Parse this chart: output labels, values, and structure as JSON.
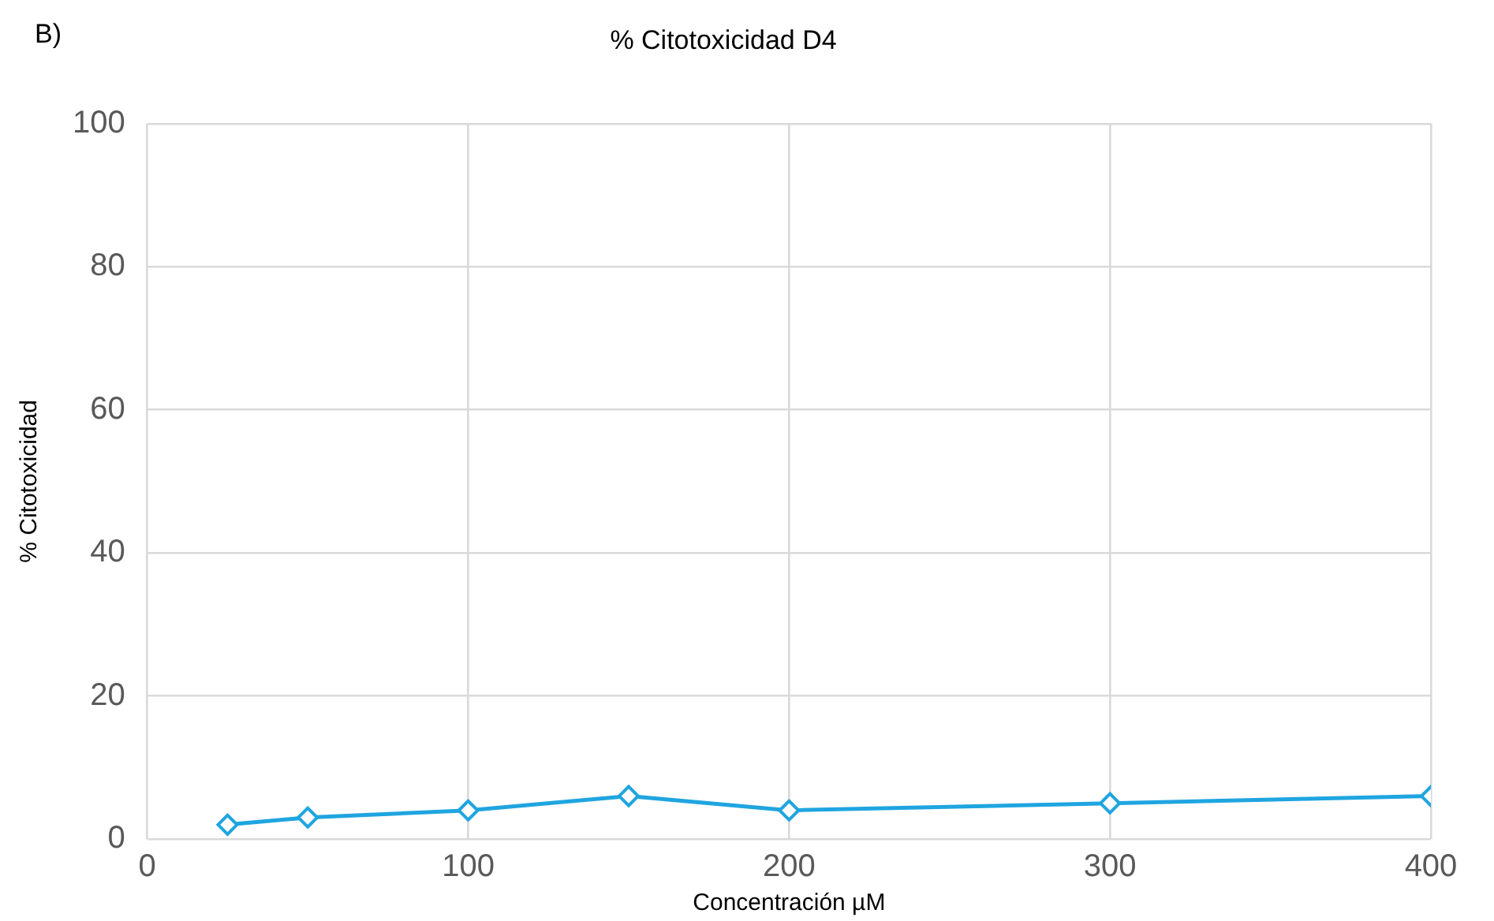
{
  "chart_data": {
    "type": "line",
    "title": "% Citotoxicidad D4",
    "xlabel": "Concentración µM",
    "ylabel": "% Citotoxicidad",
    "annotations": [
      "B)"
    ],
    "x": [
      25,
      50,
      100,
      150,
      200,
      300,
      400
    ],
    "series": [
      {
        "color": "#1fa5e0",
        "values": [
          2,
          3,
          4,
          6,
          4,
          5,
          6
        ]
      }
    ],
    "xlim": [
      0,
      400
    ],
    "xticks": [
      0,
      100,
      200,
      300,
      400
    ],
    "ylim": [
      0,
      100
    ],
    "yticks": [
      0,
      20,
      40,
      60,
      80,
      100
    ],
    "grid": true,
    "legend": false,
    "marker": "diamond",
    "line_style": "solid"
  }
}
